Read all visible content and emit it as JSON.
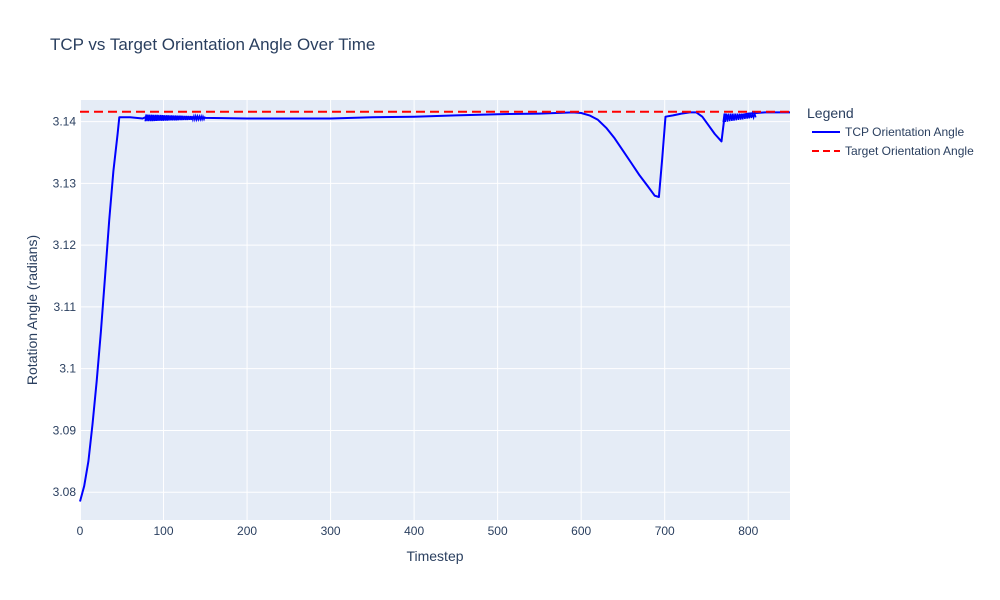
{
  "chart_data": {
    "type": "line",
    "title": "TCP vs Target Orientation Angle Over Time",
    "xlabel": "Timestep",
    "ylabel": "Rotation Angle (radians)",
    "xlim": [
      0,
      850
    ],
    "ylim": [
      3.0755,
      3.1435
    ],
    "x_ticks": [
      0,
      100,
      200,
      300,
      400,
      500,
      600,
      700,
      800
    ],
    "y_ticks": [
      3.08,
      3.09,
      3.1,
      3.11,
      3.12,
      3.13,
      3.14
    ],
    "y_tick_labels": [
      "3.08",
      "3.09",
      "3.1",
      "3.11",
      "3.12",
      "3.13",
      "3.14"
    ],
    "grid": true,
    "legend": {
      "title": "Legend",
      "placement": "right"
    },
    "series": [
      {
        "name": "TCP Orientation Angle",
        "style": "solid",
        "color": "#0000ff",
        "points": [
          [
            0,
            3.0785
          ],
          [
            5,
            3.081
          ],
          [
            10,
            3.085
          ],
          [
            15,
            3.091
          ],
          [
            20,
            3.098
          ],
          [
            25,
            3.106
          ],
          [
            30,
            3.115
          ],
          [
            35,
            3.124
          ],
          [
            40,
            3.132
          ],
          [
            45,
            3.138
          ],
          [
            47,
            3.1407
          ],
          [
            60,
            3.1407
          ],
          [
            75,
            3.1405
          ],
          [
            80,
            3.1408
          ],
          [
            90,
            3.1403
          ],
          [
            100,
            3.1408
          ],
          [
            110,
            3.1404
          ],
          [
            120,
            3.1408
          ],
          [
            130,
            3.1405
          ],
          [
            140,
            3.1407
          ],
          [
            150,
            3.1406
          ],
          [
            200,
            3.1405
          ],
          [
            250,
            3.1405
          ],
          [
            300,
            3.1405
          ],
          [
            350,
            3.1407
          ],
          [
            400,
            3.1408
          ],
          [
            450,
            3.141
          ],
          [
            500,
            3.1412
          ],
          [
            550,
            3.1413
          ],
          [
            590,
            3.1415
          ],
          [
            600,
            3.1414
          ],
          [
            610,
            3.141
          ],
          [
            620,
            3.1403
          ],
          [
            630,
            3.139
          ],
          [
            640,
            3.1373
          ],
          [
            650,
            3.1353
          ],
          [
            660,
            3.1333
          ],
          [
            670,
            3.1313
          ],
          [
            680,
            3.1295
          ],
          [
            688,
            3.128
          ],
          [
            693,
            3.1278
          ],
          [
            697,
            3.134
          ],
          [
            701,
            3.1408
          ],
          [
            710,
            3.141
          ],
          [
            720,
            3.1413
          ],
          [
            730,
            3.1415
          ],
          [
            738,
            3.1415
          ],
          [
            745,
            3.1408
          ],
          [
            752,
            3.1395
          ],
          [
            760,
            3.138
          ],
          [
            768,
            3.1368
          ],
          [
            772,
            3.1412
          ],
          [
            780,
            3.1405
          ],
          [
            790,
            3.141
          ],
          [
            800,
            3.1413
          ],
          [
            820,
            3.1415
          ],
          [
            840,
            3.1415
          ],
          [
            850,
            3.1415
          ]
        ]
      },
      {
        "name": "Target Orientation Angle",
        "style": "dash",
        "color": "#ff0000",
        "points": [
          [
            0,
            3.14159
          ],
          [
            850,
            3.14159
          ]
        ]
      }
    ]
  }
}
